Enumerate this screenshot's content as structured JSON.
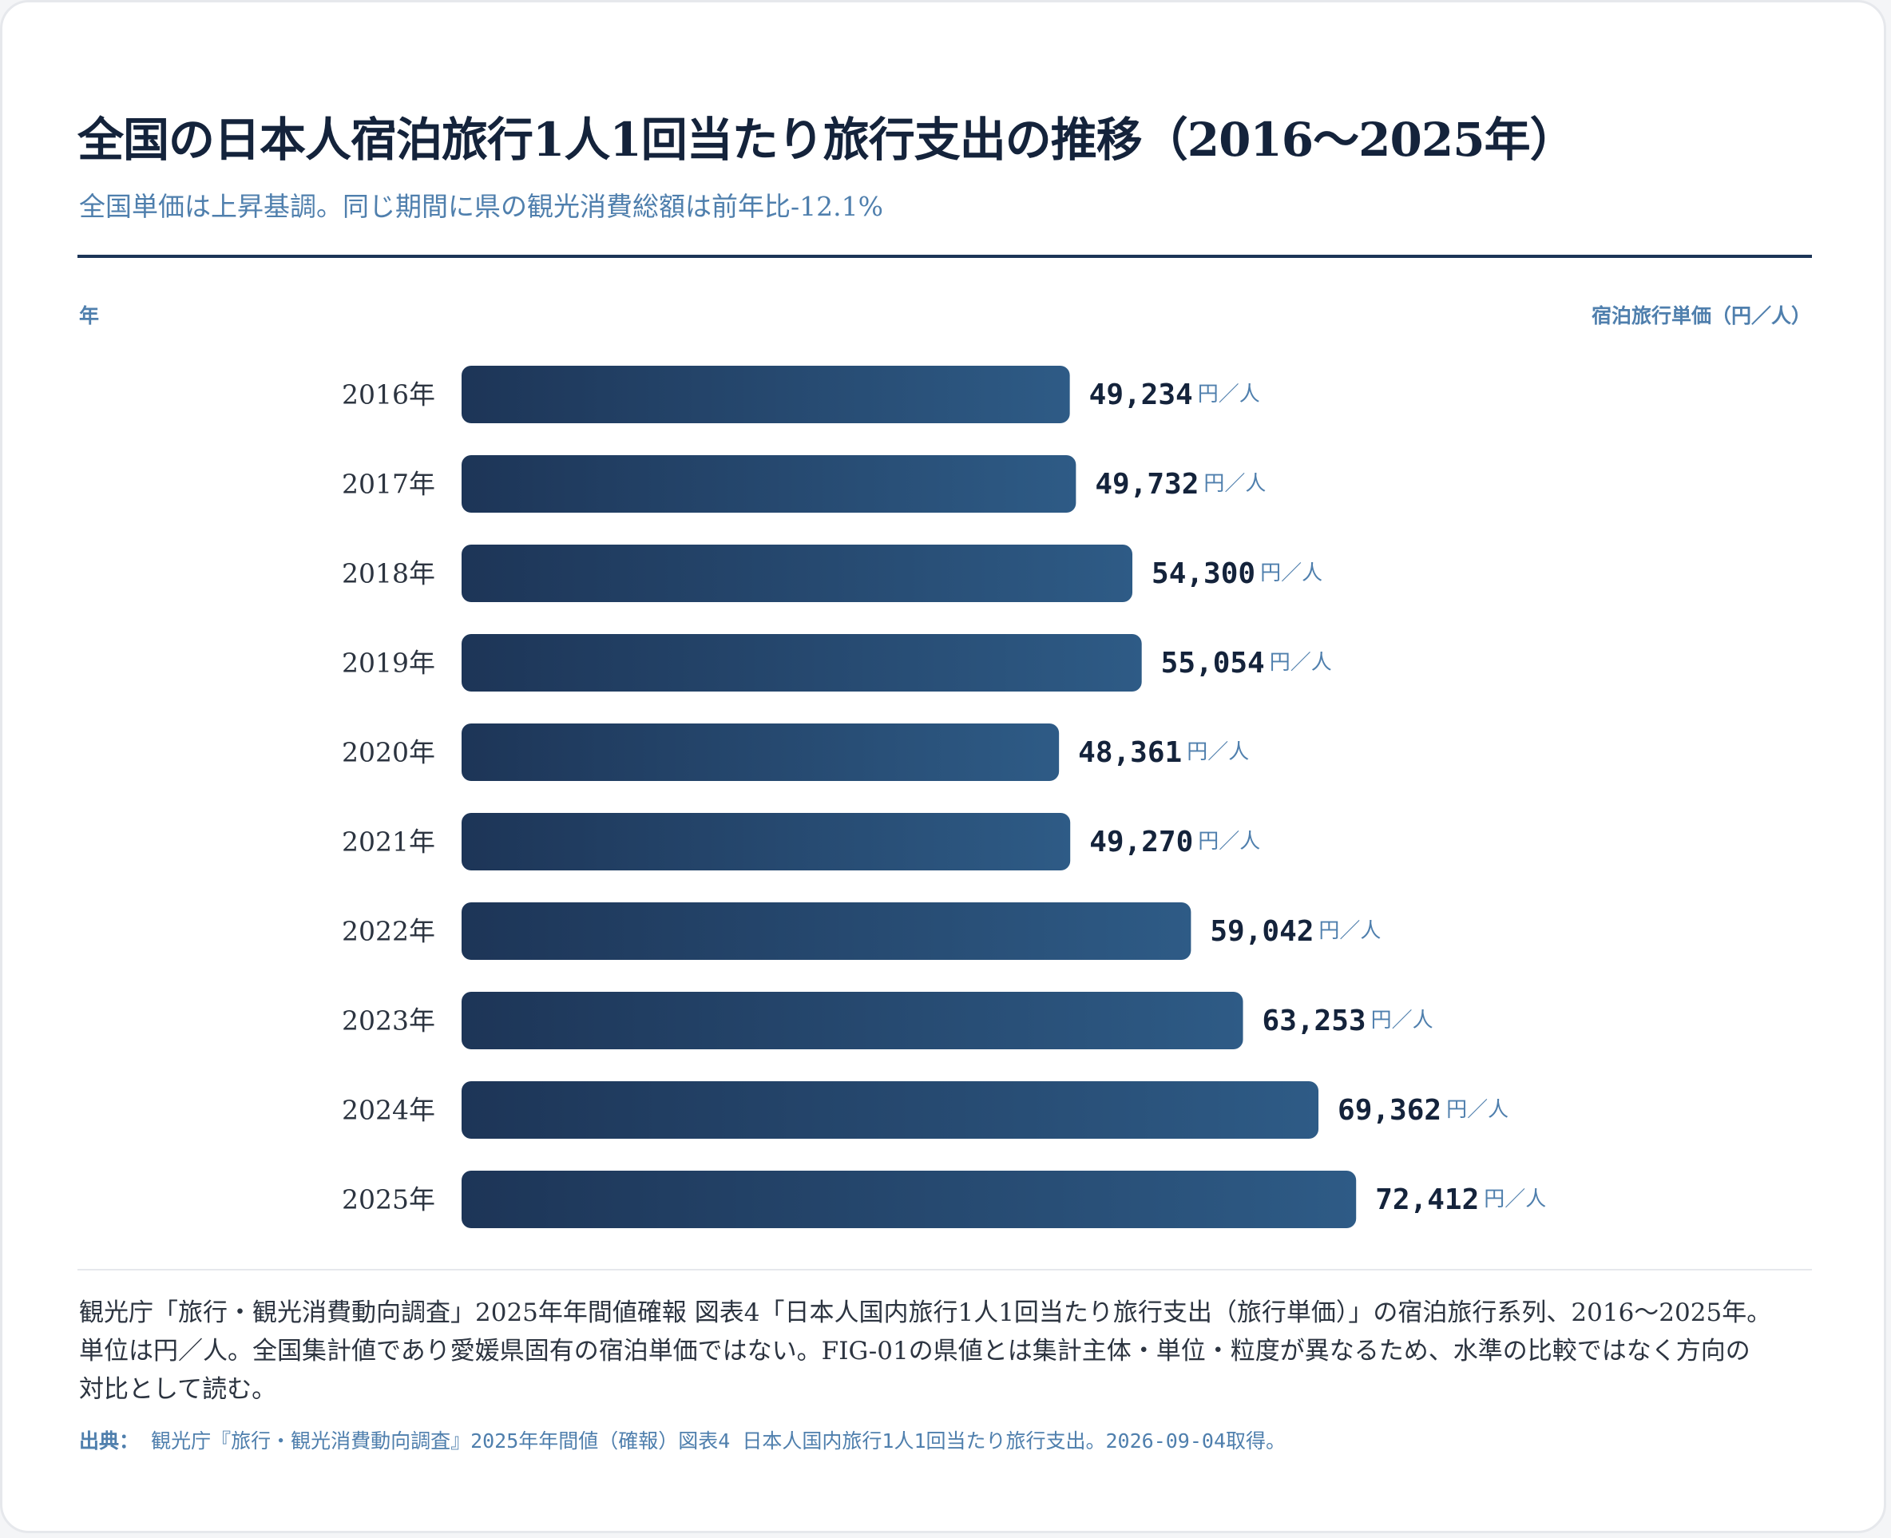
{
  "header": {
    "title": "全国の日本人宿泊旅行1人1回当たり旅行支出の推移（2016〜2025年）",
    "subtitle": "全国単価は上昇基調。同じ期間に県の観光消費総額は前年比-12.1%"
  },
  "colors": {
    "bar_start": "#1d3557",
    "bar_end": "#2e5b86",
    "accent": "#4f7fad",
    "title": "#14233b"
  },
  "chart_data": {
    "type": "bar",
    "orientation": "horizontal",
    "title": "全国の日本人宿泊旅行1人1回当たり旅行支出の推移（2016〜2025年）",
    "subtitle": "全国単価は上昇基調。同じ期間に県の観光消費総額は前年比-12.1%",
    "xlabel": "宿泊旅行単価（円／人）",
    "ylabel": "年",
    "value_unit": "円／人",
    "categories": [
      "2016年",
      "2017年",
      "2018年",
      "2019年",
      "2020年",
      "2021年",
      "2022年",
      "2023年",
      "2024年",
      "2025年"
    ],
    "values": [
      49234,
      49732,
      54300,
      55054,
      48361,
      49270,
      59042,
      63253,
      69362,
      72412
    ],
    "value_labels": [
      "49,234",
      "49,732",
      "54,300",
      "55,054",
      "48,361",
      "49,270",
      "59,042",
      "63,253",
      "69,362",
      "72,412"
    ],
    "grid": false,
    "legend": "none"
  },
  "footer": {
    "note_lines": [
      "観光庁「旅行・観光消費動向調査」2025年年間値確報 図表4「日本人国内旅行1人1回当たり旅行支出（旅行単価）」の宿泊旅行系列、2016〜2025年。",
      "単位は円／人。全国集計値であり愛媛県固有の宿泊単価ではない。FIG-01の県値とは集計主体・単位・粒度が異なるため、水準の比較ではなく方向の",
      "対比として読む。"
    ],
    "source_label": "出典：",
    "source_text": "観光庁『旅行・観光消費動向調査』2025年年間値（確報）図表4 日本人国内旅行1人1回当たり旅行支出。2026-09-04取得。"
  }
}
